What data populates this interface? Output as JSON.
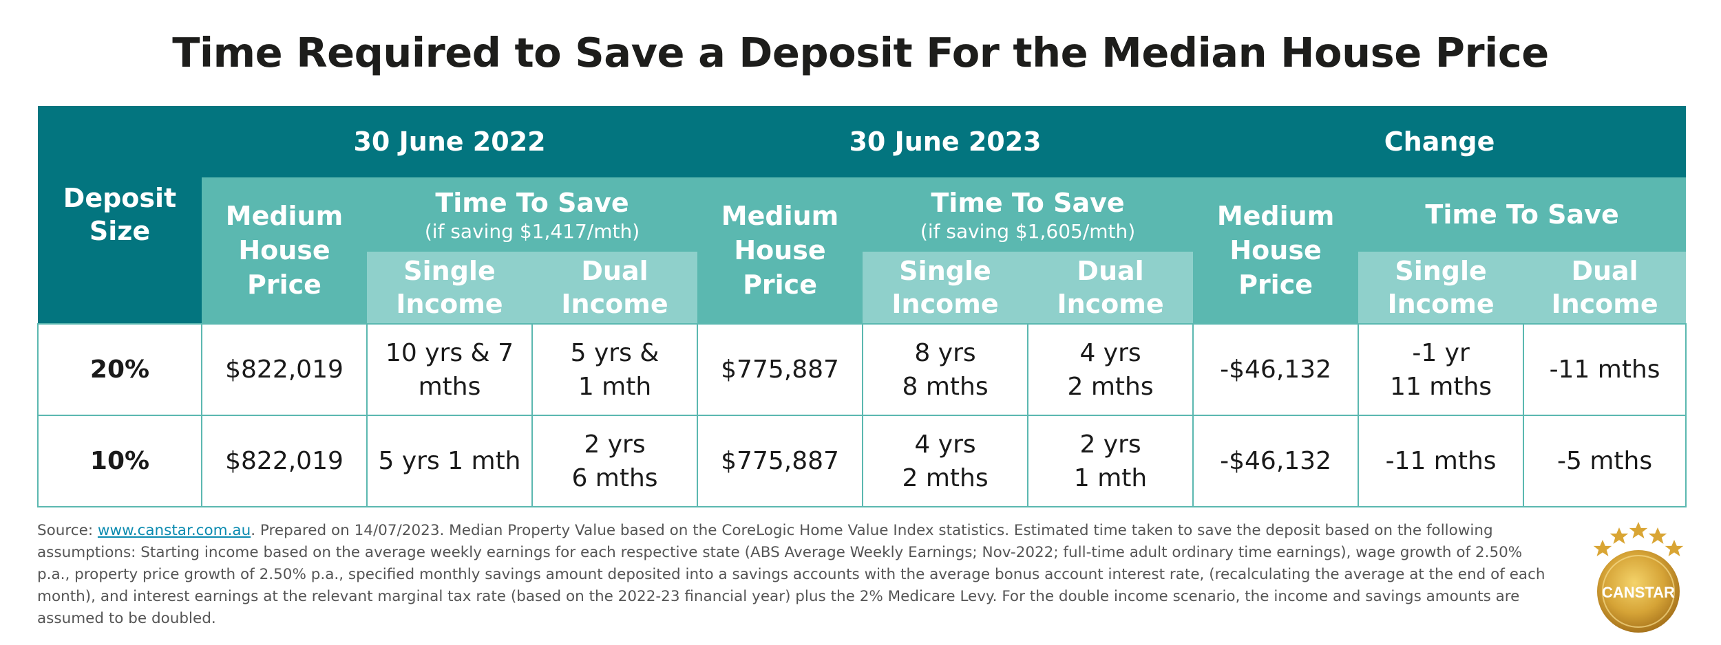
{
  "title": "Time Required to Save a Deposit For the Median House Price",
  "table": {
    "deposit_header": [
      "Deposit",
      "Size"
    ],
    "groups": [
      {
        "label": "30 June 2022",
        "price_header": [
          "Medium",
          "House",
          "Price"
        ],
        "time_header": "Time To Save",
        "time_sub": "(if saving $1,417/mth)"
      },
      {
        "label": "30 June 2023",
        "price_header": [
          "Medium",
          "House",
          "Price"
        ],
        "time_header": "Time To Save",
        "time_sub": "(if saving $1,605/mth)"
      },
      {
        "label": "Change",
        "price_header": [
          "Medium",
          "House",
          "Price"
        ],
        "time_header": "Time To Save",
        "time_sub": ""
      }
    ],
    "single_income": [
      "Single",
      "Income"
    ],
    "dual_income": [
      "Dual",
      "Income"
    ],
    "rows": [
      {
        "deposit": "20%",
        "price_2022": "$822,019",
        "single_2022": [
          "10 yrs & 7",
          "mths"
        ],
        "dual_2022": [
          "5 yrs &",
          "1 mth"
        ],
        "price_2023": "$775,887",
        "single_2023": [
          "8 yrs",
          "8 mths"
        ],
        "dual_2023": [
          "4 yrs",
          "2 mths"
        ],
        "price_change": "-$46,132",
        "single_change": [
          "-1 yr",
          "11 mths"
        ],
        "dual_change": [
          "-11 mths"
        ]
      },
      {
        "deposit": "10%",
        "price_2022": "$822,019",
        "single_2022": [
          "5 yrs 1 mth"
        ],
        "dual_2022": [
          "2 yrs",
          "6 mths"
        ],
        "price_2023": "$775,887",
        "single_2023": [
          "4 yrs",
          "2 mths"
        ],
        "dual_2023": [
          "2 yrs",
          "1 mth"
        ],
        "price_change": "-$46,132",
        "single_change": [
          "-11 mths"
        ],
        "dual_change": [
          "-5 mths"
        ]
      }
    ]
  },
  "source": {
    "prefix": "Source: ",
    "link": "www.canstar.com.au",
    "text": ". Prepared on 14/07/2023. Median Property Value based on the CoreLogic Home Value Index statistics. Estimated time taken to save the deposit based on the following assumptions: Starting income based on the average weekly earnings for each respective state (ABS Average Weekly Earnings; Nov-2022; full-time adult ordinary time earnings), wage growth of 2.50% p.a., property price growth of 2.50% p.a., specified monthly savings amount deposited into a savings accounts with the average bonus account interest rate, (recalculating the average at the end of each month), and interest earnings at the relevant marginal tax rate (based on the 2022-23 financial year) plus the 2% Medicare Levy. For the double income scenario, the income and savings amounts are assumed to be doubled."
  },
  "logo": {
    "text": "CANSTAR",
    "icon": "canstar-five-star-badge"
  },
  "colors": {
    "dark_teal": "#03757f",
    "mid_teal": "#5bb8b0",
    "light_teal": "#8fd0cb",
    "gold": "#c9962a",
    "link": "#0b8bb0"
  }
}
